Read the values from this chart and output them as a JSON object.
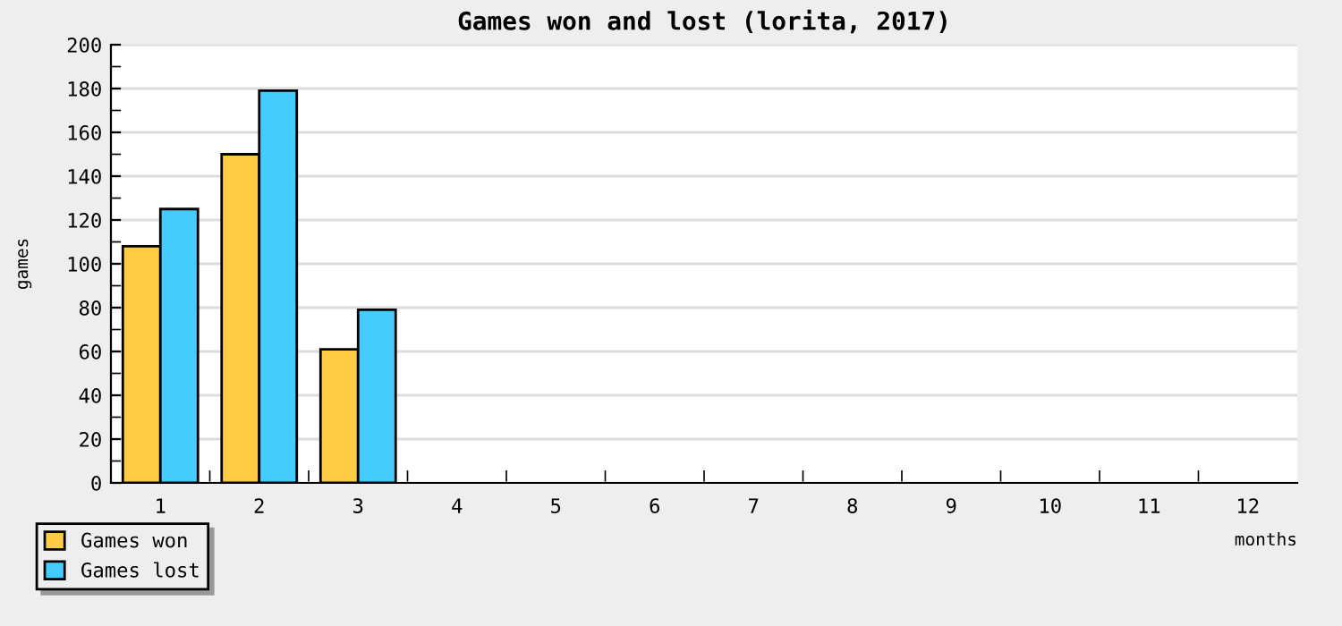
{
  "chart_data": {
    "type": "bar",
    "title": "Games won and lost (lorita, 2017)",
    "xlabel": "months",
    "ylabel": "games",
    "categories": [
      "1",
      "2",
      "3",
      "4",
      "5",
      "6",
      "7",
      "8",
      "9",
      "10",
      "11",
      "12"
    ],
    "series": [
      {
        "name": "Games won",
        "color": "#ffcc44",
        "values": [
          108,
          150,
          61,
          null,
          null,
          null,
          null,
          null,
          null,
          null,
          null,
          null
        ]
      },
      {
        "name": "Games lost",
        "color": "#44ccff",
        "values": [
          125,
          179,
          79,
          null,
          null,
          null,
          null,
          null,
          null,
          null,
          null,
          null
        ]
      }
    ],
    "ylim": [
      0,
      200
    ],
    "yticks": [
      0,
      20,
      40,
      60,
      80,
      100,
      120,
      140,
      160,
      180,
      200
    ],
    "grid": "y",
    "legend": "bottom left"
  }
}
